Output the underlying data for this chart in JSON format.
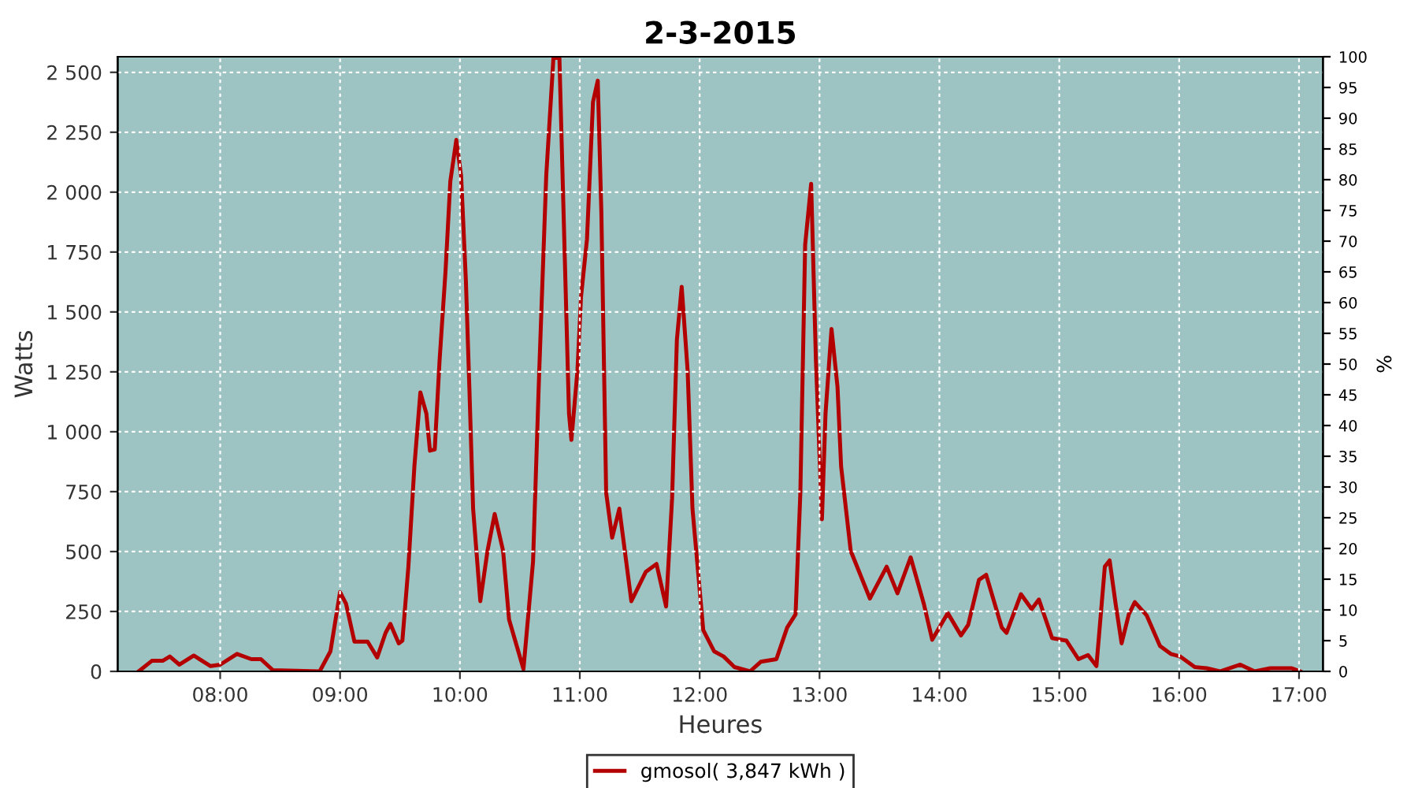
{
  "chart_data": {
    "type": "line",
    "title": "2-3-2015",
    "xlabel": "Heures",
    "ylabel": "Watts",
    "y2label": "%",
    "series": [
      {
        "name": "gmosol( 3,847 kWh )",
        "color": "#b30000",
        "x": [
          7.32,
          7.43,
          7.52,
          7.58,
          7.66,
          7.78,
          7.92,
          8.0,
          8.14,
          8.26,
          8.34,
          8.44,
          8.83,
          8.92,
          9.0,
          9.05,
          9.12,
          9.23,
          9.31,
          9.38,
          9.42,
          9.49,
          9.52,
          9.57,
          9.62,
          9.67,
          9.72,
          9.75,
          9.79,
          9.83,
          9.88,
          9.92,
          9.97,
          10.01,
          10.05,
          10.08,
          10.11,
          10.17,
          10.23,
          10.29,
          10.36,
          10.41,
          10.53,
          10.61,
          10.66,
          10.72,
          10.78,
          10.83,
          10.86,
          10.91,
          10.93,
          10.98,
          11.01,
          11.06,
          11.11,
          11.15,
          11.18,
          11.22,
          11.27,
          11.33,
          11.43,
          11.55,
          11.64,
          11.72,
          11.77,
          11.81,
          11.85,
          11.9,
          11.94,
          12.03,
          12.12,
          12.2,
          12.29,
          12.42,
          12.51,
          12.64,
          12.73,
          12.8,
          12.84,
          12.88,
          12.93,
          12.97,
          13.02,
          13.05,
          13.1,
          13.15,
          13.18,
          13.26,
          13.42,
          13.56,
          13.65,
          13.76,
          13.87,
          13.94,
          14.07,
          14.18,
          14.24,
          14.33,
          14.39,
          14.52,
          14.56,
          14.68,
          14.77,
          14.83,
          14.94,
          15.06,
          15.16,
          15.24,
          15.31,
          15.38,
          15.42,
          15.47,
          15.52,
          15.58,
          15.63,
          15.73,
          15.84,
          15.93,
          16.01,
          16.13,
          16.23,
          16.34,
          16.51,
          16.63,
          16.76,
          16.94,
          17.01
        ],
        "values": [
          0,
          44,
          44,
          62,
          28,
          66,
          22,
          28,
          73,
          51,
          51,
          5,
          0,
          84,
          331,
          282,
          124,
          124,
          58,
          161,
          198,
          117,
          128,
          437,
          855,
          1164,
          1076,
          921,
          926,
          1296,
          1671,
          2046,
          2218,
          2068,
          1627,
          1164,
          679,
          293,
          503,
          657,
          503,
          216,
          10,
          458,
          1230,
          2068,
          2560,
          2560,
          2000,
          1076,
          966,
          1252,
          1561,
          1804,
          2376,
          2465,
          1913,
          745,
          558,
          679,
          293,
          415,
          448,
          271,
          723,
          1384,
          1605,
          1252,
          679,
          172,
          84,
          62,
          18,
          0,
          40,
          51,
          183,
          238,
          745,
          1781,
          2035,
          1296,
          635,
          1076,
          1429,
          1186,
          855,
          503,
          304,
          437,
          326,
          476,
          282,
          132,
          243,
          150,
          194,
          382,
          403,
          183,
          161,
          322,
          260,
          300,
          139,
          128,
          51,
          68,
          22,
          437,
          463,
          282,
          117,
          238,
          289,
          233,
          106,
          73,
          62,
          18,
          13,
          0,
          28,
          0,
          13,
          13,
          0
        ]
      }
    ],
    "xlim": [
      7.145,
      17.2
    ],
    "xticks": [
      {
        "value": 8,
        "label": "08:00"
      },
      {
        "value": 9,
        "label": "09:00"
      },
      {
        "value": 10,
        "label": "10:00"
      },
      {
        "value": 11,
        "label": "11:00"
      },
      {
        "value": 12,
        "label": "12:00"
      },
      {
        "value": 13,
        "label": "13:00"
      },
      {
        "value": 14,
        "label": "14:00"
      },
      {
        "value": 15,
        "label": "15:00"
      },
      {
        "value": 16,
        "label": "16:00"
      },
      {
        "value": 17,
        "label": "17:00"
      }
    ],
    "ylim": [
      0,
      2565
    ],
    "yticks": [
      0,
      250,
      500,
      750,
      {
        "value": 1000,
        "label": "1 000"
      },
      {
        "value": 1250,
        "label": "1 250"
      },
      {
        "value": 1500,
        "label": "1 500"
      },
      {
        "value": 1750,
        "label": "1 750"
      },
      {
        "value": 2000,
        "label": "2 000"
      },
      {
        "value": 2250,
        "label": "2 250"
      },
      {
        "value": 2500,
        "label": "2 500"
      }
    ],
    "y2lim": [
      0,
      100
    ],
    "y2ticks": [
      0,
      5,
      10,
      15,
      20,
      25,
      30,
      35,
      40,
      45,
      50,
      55,
      60,
      65,
      70,
      75,
      80,
      85,
      90,
      95,
      100
    ],
    "grid": true,
    "legend": "bottom",
    "line_style": "solid"
  }
}
